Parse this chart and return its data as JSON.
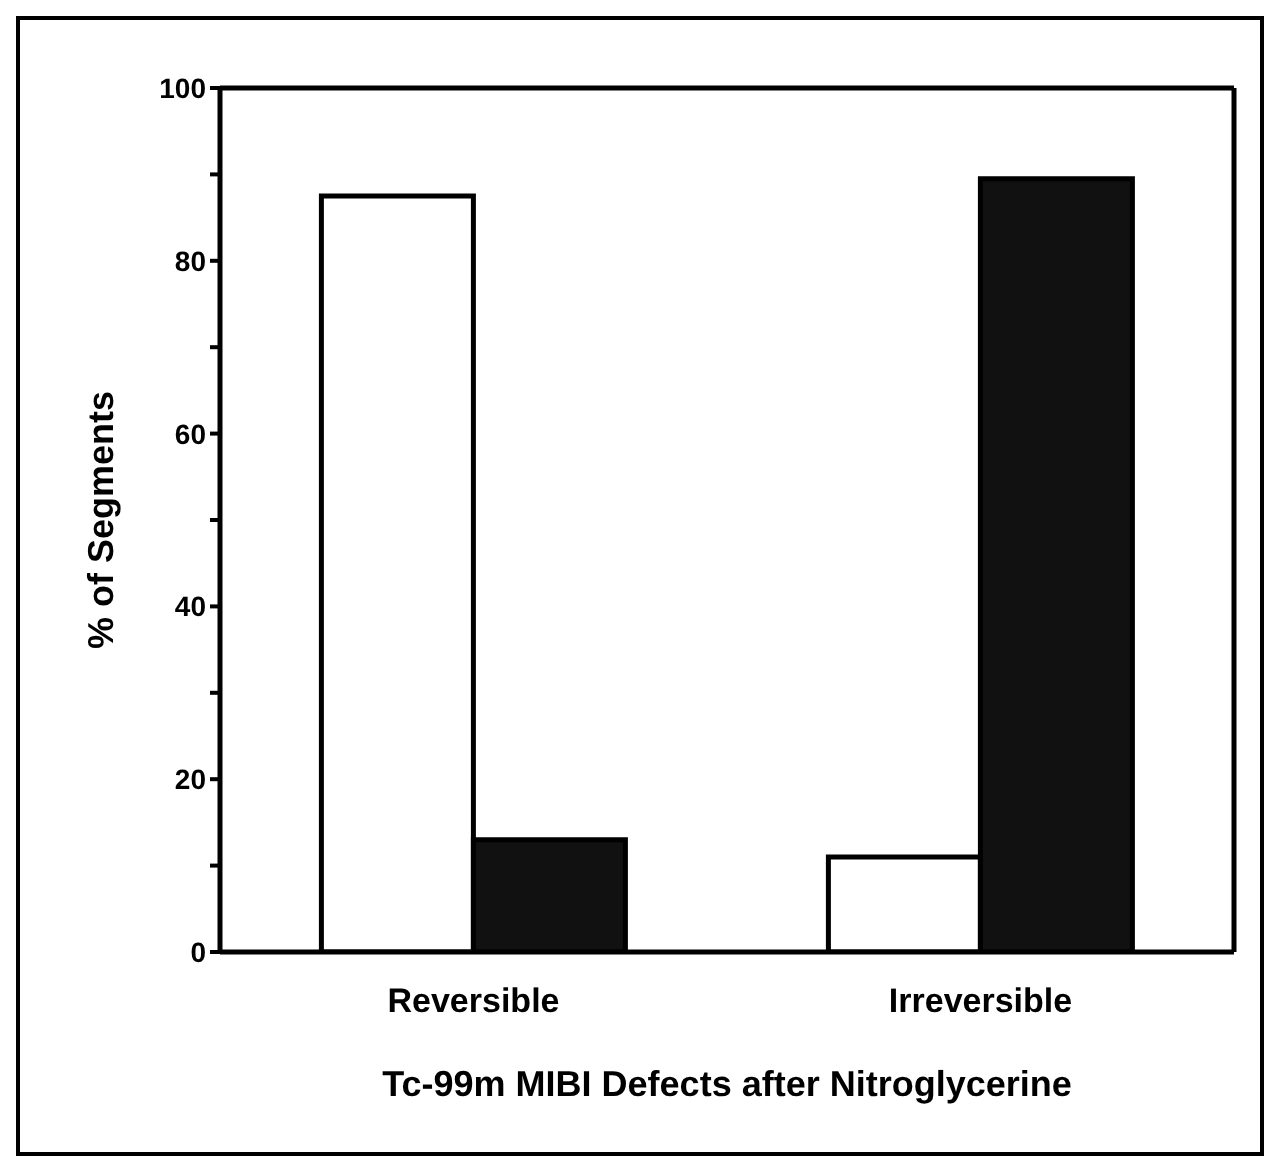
{
  "chart_data": {
    "type": "bar",
    "xlabel": "Tc-99m MIBI Defects after Nitroglycerine",
    "ylabel": "% of Segments",
    "categories": [
      "Reversible",
      "Irreversible"
    ],
    "series": [
      {
        "color": "#ffffff",
        "values": [
          87.5,
          11
        ]
      },
      {
        "color": "#111111",
        "values": [
          13,
          89.5
        ]
      }
    ],
    "ylim": [
      0,
      100
    ],
    "yticks": [
      0,
      {
        "value": 10,
        "label": null
      },
      20,
      {
        "value": 30,
        "label": null
      },
      40,
      {
        "value": 50,
        "label": null
      },
      60,
      {
        "value": 70,
        "label": null
      },
      80,
      {
        "value": 90,
        "label": null
      },
      100
    ],
    "grid": false,
    "legend": false
  }
}
